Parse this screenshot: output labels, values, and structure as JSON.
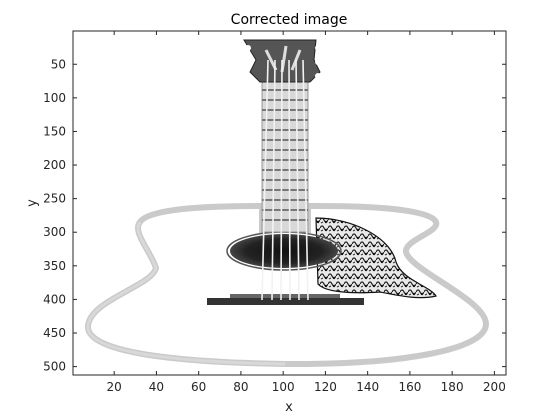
{
  "chart_data": {
    "type": "heatmap",
    "title": "Corrected image",
    "xlabel": "x",
    "ylabel": "y",
    "xlim": [
      0.5,
      205.5
    ],
    "ylim": [
      0.5,
      512.5
    ],
    "y_reversed": true,
    "xticks": [
      20,
      40,
      60,
      80,
      100,
      120,
      140,
      160,
      180,
      200
    ],
    "yticks": [
      50,
      100,
      150,
      200,
      250,
      300,
      350,
      400,
      450,
      500
    ],
    "colormap": "gray",
    "grid": false,
    "content": "grayscale guitar image",
    "colors": {
      "axis": "#262626",
      "box": "#262626",
      "background": "#ffffff"
    }
  }
}
